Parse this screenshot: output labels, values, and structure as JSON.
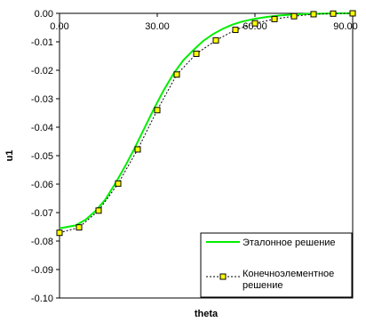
{
  "chart_data": {
    "type": "line",
    "xlabel": "theta",
    "ylabel": "u1",
    "xlim": [
      0,
      90
    ],
    "ylim": [
      -0.1,
      0.0
    ],
    "x_ticks": [
      "0.00",
      "30.00",
      "60.00",
      "90.00"
    ],
    "x_tick_values": [
      0,
      30,
      60,
      90
    ],
    "y_ticks": [
      "0.00",
      "-0.01",
      "-0.02",
      "-0.03",
      "-0.04",
      "-0.05",
      "-0.06",
      "-0.07",
      "-0.08",
      "-0.09",
      "-0.10"
    ],
    "y_tick_values": [
      0.0,
      -0.01,
      -0.02,
      -0.03,
      -0.04,
      -0.05,
      -0.06,
      -0.07,
      -0.08,
      -0.09,
      -0.1
    ],
    "grid": false,
    "legend_position": "bottom-right",
    "series": [
      {
        "name": "Эталонное решение",
        "color": "#00ee00",
        "style": "solid",
        "x": [
          0,
          5,
          8,
          11,
          14,
          17,
          20,
          23,
          26,
          29,
          32,
          35,
          38,
          41,
          44,
          47,
          50,
          53,
          56,
          60,
          64,
          68,
          72,
          76,
          80,
          84,
          88,
          90
        ],
        "y": [
          -0.0755,
          -0.0745,
          -0.0725,
          -0.0695,
          -0.0655,
          -0.06,
          -0.054,
          -0.0475,
          -0.0405,
          -0.0335,
          -0.027,
          -0.0212,
          -0.0165,
          -0.013,
          -0.0098,
          -0.0074,
          -0.0055,
          -0.004,
          -0.0029,
          -0.0019,
          -0.0012,
          -0.0007,
          -0.0004,
          -0.0002,
          -0.0001,
          0.0,
          0.0,
          0.0
        ]
      },
      {
        "name": "Конечноэлементное решение",
        "color": "#000000",
        "marker_color": "#ffff00",
        "style": "dotted",
        "x": [
          0,
          6,
          12,
          18,
          24,
          30,
          36,
          42,
          48,
          54,
          60,
          66,
          72,
          78,
          84,
          90
        ],
        "y": [
          -0.0771,
          -0.0752,
          -0.0693,
          -0.0598,
          -0.0478,
          -0.034,
          -0.0215,
          -0.0142,
          -0.0095,
          -0.0058,
          -0.0035,
          -0.002,
          -0.001,
          -0.0003,
          -0.0001,
          0.0
        ]
      }
    ]
  }
}
